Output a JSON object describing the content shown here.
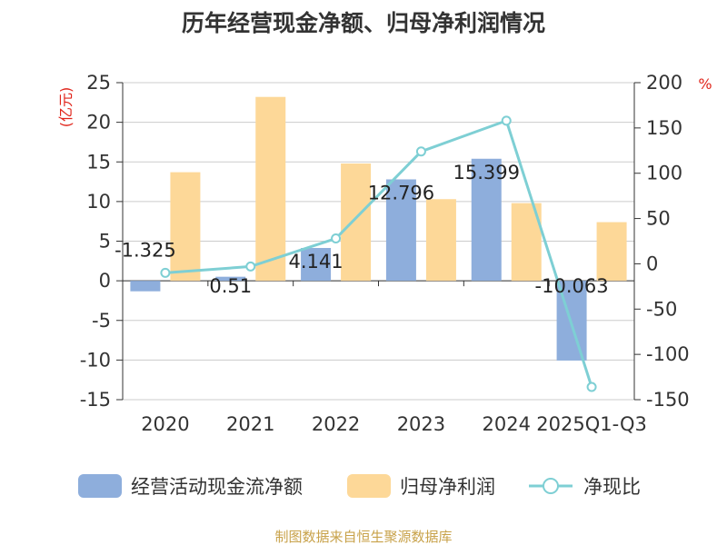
{
  "chart_data": {
    "type": "bar",
    "title": "历年经营现金净额、归母净利润情况",
    "categories": [
      "2020",
      "2021",
      "2022",
      "2023",
      "2024",
      "2025Q1-Q3"
    ],
    "y_left_unit": "(亿元)",
    "y_right_unit": "%",
    "ylim_left": [
      -15,
      25
    ],
    "ylim_right": [
      -150,
      200
    ],
    "y_left_ticks": [
      25,
      20,
      15,
      10,
      5,
      0,
      -5,
      -10,
      -15
    ],
    "y_right_ticks": [
      200,
      150,
      100,
      50,
      0,
      -50,
      -100,
      -150
    ],
    "grid": true,
    "legend_position": "bottom",
    "series": [
      {
        "name": "经营活动现金流净额",
        "kind": "bar",
        "axis": "left",
        "color": "#8eaedc",
        "values": [
          -1.325,
          0.51,
          4.141,
          12.796,
          15.399,
          -10.063
        ],
        "labels": [
          "-1.325",
          "0.51",
          "4.141",
          "12.796",
          "15.399",
          "-10.063"
        ]
      },
      {
        "name": "归母净利润",
        "kind": "bar",
        "axis": "left",
        "color": "#fdd898",
        "values": [
          13.7,
          23.2,
          14.8,
          10.3,
          9.8,
          7.4
        ]
      },
      {
        "name": "净现比",
        "kind": "line",
        "axis": "right",
        "color": "#7ecfd4",
        "values": [
          -10,
          -3,
          28,
          124,
          158,
          -136
        ]
      }
    ],
    "source": "制图数据来自恒生聚源数据库"
  }
}
